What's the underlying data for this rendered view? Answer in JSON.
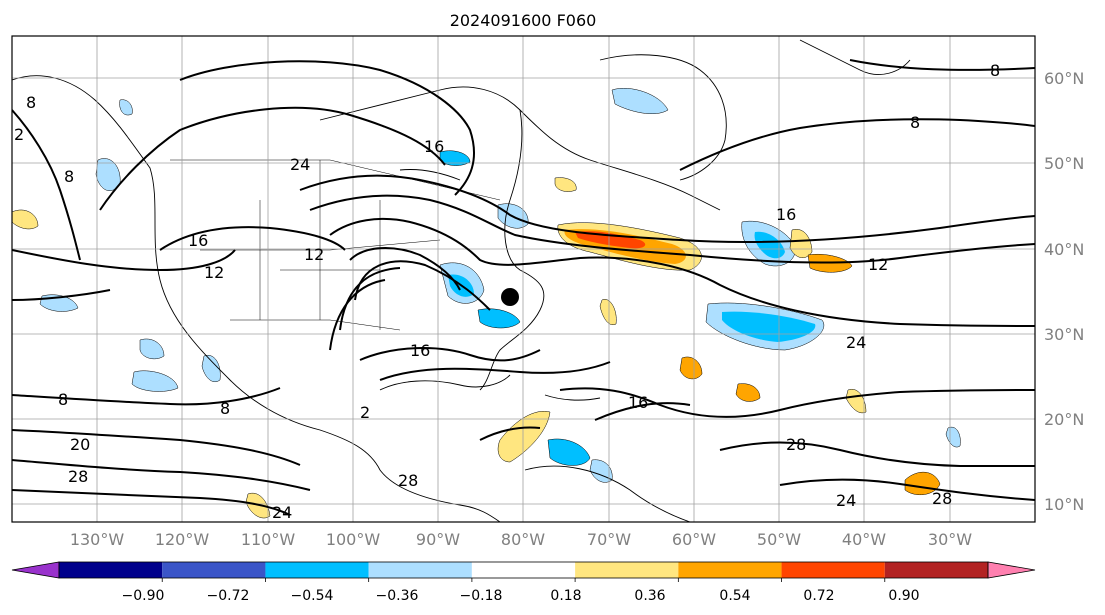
{
  "title": "2024091600 F060",
  "lat_labels": [
    "60°N",
    "50°N",
    "40°N",
    "30°N",
    "20°N",
    "10°N"
  ],
  "lon_labels": [
    "130°W",
    "120°W",
    "110°W",
    "100°W",
    "90°W",
    "80°W",
    "70°W",
    "60°W",
    "50°W",
    "40°W",
    "30°W"
  ],
  "contour_labels": [
    "8",
    "8",
    "8",
    "8",
    "8",
    "8",
    "12",
    "12",
    "12",
    "16",
    "16",
    "16",
    "16",
    "16",
    "20",
    "24",
    "24",
    "24",
    "24",
    "28",
    "28",
    "28",
    "28",
    "2",
    "2"
  ],
  "colorbar": {
    "tick_labels": [
      "−0.90",
      "−0.72",
      "−0.54",
      "−0.36",
      "−0.18",
      "0.18",
      "0.36",
      "0.54",
      "0.72",
      "0.90"
    ],
    "colors": [
      "#9932cc",
      "#00008b",
      "#3a55c8",
      "#00bfff",
      "#addfff",
      "#ffffff",
      "#ffe680",
      "#ffa500",
      "#ff4500",
      "#b22222",
      "#ff80b0"
    ]
  },
  "colors": {
    "contour": "#000000",
    "coast": "#000000",
    "grid": "#a0a0a0",
    "marker": "#000000"
  }
}
